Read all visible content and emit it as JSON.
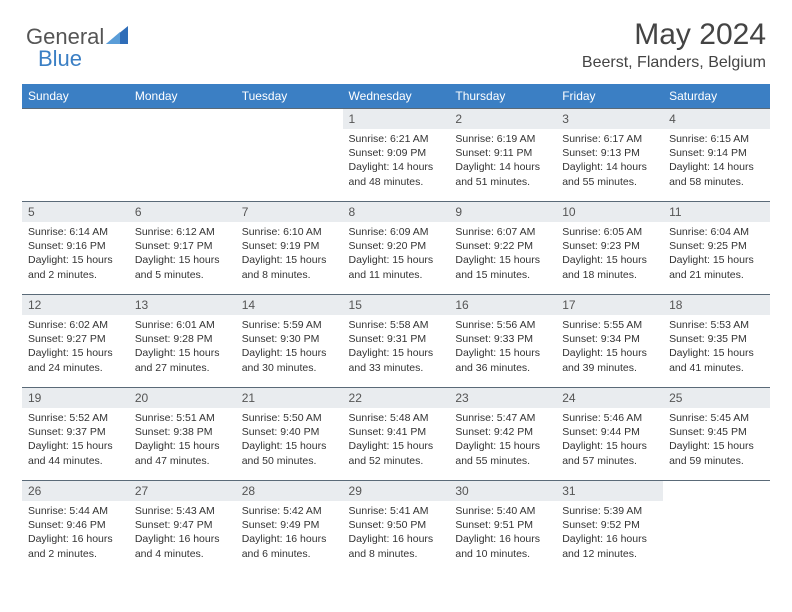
{
  "brand": {
    "part1": "General",
    "part2": "Blue"
  },
  "title": "May 2024",
  "location": "Beerst, Flanders, Belgium",
  "colors": {
    "header_bg": "#3b7fc4",
    "header_text": "#ffffff",
    "daynum_bg": "#e9ecef",
    "grid_line": "#5a6a78",
    "body_text": "#333333",
    "logo_blue": "#3b7fc4"
  },
  "weekdays": [
    "Sunday",
    "Monday",
    "Tuesday",
    "Wednesday",
    "Thursday",
    "Friday",
    "Saturday"
  ],
  "weeks": [
    [
      null,
      null,
      null,
      {
        "n": "1",
        "sr": "6:21 AM",
        "ss": "9:09 PM",
        "dl": "14 hours and 48 minutes."
      },
      {
        "n": "2",
        "sr": "6:19 AM",
        "ss": "9:11 PM",
        "dl": "14 hours and 51 minutes."
      },
      {
        "n": "3",
        "sr": "6:17 AM",
        "ss": "9:13 PM",
        "dl": "14 hours and 55 minutes."
      },
      {
        "n": "4",
        "sr": "6:15 AM",
        "ss": "9:14 PM",
        "dl": "14 hours and 58 minutes."
      }
    ],
    [
      {
        "n": "5",
        "sr": "6:14 AM",
        "ss": "9:16 PM",
        "dl": "15 hours and 2 minutes."
      },
      {
        "n": "6",
        "sr": "6:12 AM",
        "ss": "9:17 PM",
        "dl": "15 hours and 5 minutes."
      },
      {
        "n": "7",
        "sr": "6:10 AM",
        "ss": "9:19 PM",
        "dl": "15 hours and 8 minutes."
      },
      {
        "n": "8",
        "sr": "6:09 AM",
        "ss": "9:20 PM",
        "dl": "15 hours and 11 minutes."
      },
      {
        "n": "9",
        "sr": "6:07 AM",
        "ss": "9:22 PM",
        "dl": "15 hours and 15 minutes."
      },
      {
        "n": "10",
        "sr": "6:05 AM",
        "ss": "9:23 PM",
        "dl": "15 hours and 18 minutes."
      },
      {
        "n": "11",
        "sr": "6:04 AM",
        "ss": "9:25 PM",
        "dl": "15 hours and 21 minutes."
      }
    ],
    [
      {
        "n": "12",
        "sr": "6:02 AM",
        "ss": "9:27 PM",
        "dl": "15 hours and 24 minutes."
      },
      {
        "n": "13",
        "sr": "6:01 AM",
        "ss": "9:28 PM",
        "dl": "15 hours and 27 minutes."
      },
      {
        "n": "14",
        "sr": "5:59 AM",
        "ss": "9:30 PM",
        "dl": "15 hours and 30 minutes."
      },
      {
        "n": "15",
        "sr": "5:58 AM",
        "ss": "9:31 PM",
        "dl": "15 hours and 33 minutes."
      },
      {
        "n": "16",
        "sr": "5:56 AM",
        "ss": "9:33 PM",
        "dl": "15 hours and 36 minutes."
      },
      {
        "n": "17",
        "sr": "5:55 AM",
        "ss": "9:34 PM",
        "dl": "15 hours and 39 minutes."
      },
      {
        "n": "18",
        "sr": "5:53 AM",
        "ss": "9:35 PM",
        "dl": "15 hours and 41 minutes."
      }
    ],
    [
      {
        "n": "19",
        "sr": "5:52 AM",
        "ss": "9:37 PM",
        "dl": "15 hours and 44 minutes."
      },
      {
        "n": "20",
        "sr": "5:51 AM",
        "ss": "9:38 PM",
        "dl": "15 hours and 47 minutes."
      },
      {
        "n": "21",
        "sr": "5:50 AM",
        "ss": "9:40 PM",
        "dl": "15 hours and 50 minutes."
      },
      {
        "n": "22",
        "sr": "5:48 AM",
        "ss": "9:41 PM",
        "dl": "15 hours and 52 minutes."
      },
      {
        "n": "23",
        "sr": "5:47 AM",
        "ss": "9:42 PM",
        "dl": "15 hours and 55 minutes."
      },
      {
        "n": "24",
        "sr": "5:46 AM",
        "ss": "9:44 PM",
        "dl": "15 hours and 57 minutes."
      },
      {
        "n": "25",
        "sr": "5:45 AM",
        "ss": "9:45 PM",
        "dl": "15 hours and 59 minutes."
      }
    ],
    [
      {
        "n": "26",
        "sr": "5:44 AM",
        "ss": "9:46 PM",
        "dl": "16 hours and 2 minutes."
      },
      {
        "n": "27",
        "sr": "5:43 AM",
        "ss": "9:47 PM",
        "dl": "16 hours and 4 minutes."
      },
      {
        "n": "28",
        "sr": "5:42 AM",
        "ss": "9:49 PM",
        "dl": "16 hours and 6 minutes."
      },
      {
        "n": "29",
        "sr": "5:41 AM",
        "ss": "9:50 PM",
        "dl": "16 hours and 8 minutes."
      },
      {
        "n": "30",
        "sr": "5:40 AM",
        "ss": "9:51 PM",
        "dl": "16 hours and 10 minutes."
      },
      {
        "n": "31",
        "sr": "5:39 AM",
        "ss": "9:52 PM",
        "dl": "16 hours and 12 minutes."
      },
      null
    ]
  ],
  "labels": {
    "sunrise": "Sunrise:",
    "sunset": "Sunset:",
    "daylight": "Daylight:"
  }
}
